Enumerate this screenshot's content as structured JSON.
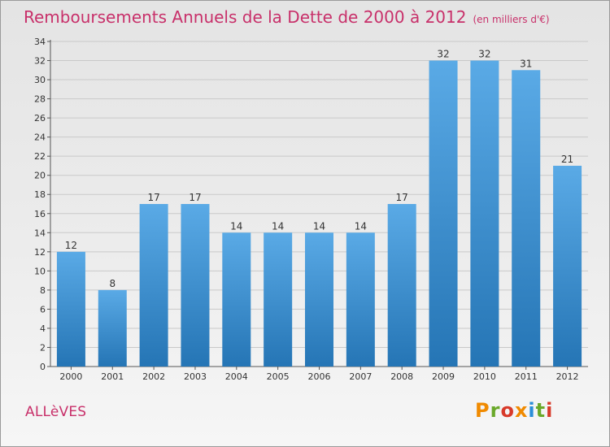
{
  "header": {
    "title": "Remboursements Annuels de la Dette de 2000 à 2012",
    "unit_note": "(en milliers d'€)"
  },
  "footer": {
    "commune": "ALLèVES",
    "brand_text": "Proxiti",
    "brand_colors": [
      "#f08a00",
      "#6aa82a",
      "#d83a2a",
      "#f08a00",
      "#2a8ed8",
      "#6aa82a",
      "#d83a2a"
    ]
  },
  "colors": {
    "title": "#c8306a",
    "bar_light": "#5aaae6",
    "bar_dark": "#2575b5",
    "grid": "#c9c9c9",
    "axis_text": "#333333"
  },
  "chart_data": {
    "type": "bar",
    "title": "Remboursements Annuels de la Dette de 2000 à 2012",
    "categories": [
      "2000",
      "2001",
      "2002",
      "2003",
      "2004",
      "2005",
      "2006",
      "2007",
      "2008",
      "2009",
      "2010",
      "2011",
      "2012"
    ],
    "values": [
      12,
      8,
      17,
      17,
      14,
      14,
      14,
      14,
      17,
      32,
      32,
      31,
      21
    ],
    "data_labels": [
      "12",
      "8",
      "17",
      "17",
      "14",
      "14",
      "14",
      "14",
      "17",
      "32",
      "32",
      "31",
      "21"
    ],
    "yticks": [
      "0",
      "2",
      "4",
      "6",
      "8",
      "10",
      "12",
      "14",
      "16",
      "18",
      "20",
      "22",
      "24",
      "26",
      "28",
      "30",
      "32",
      "34"
    ],
    "ylim": [
      0,
      34
    ],
    "xlabel": "",
    "ylabel": "",
    "grid": true,
    "legend": "none"
  }
}
